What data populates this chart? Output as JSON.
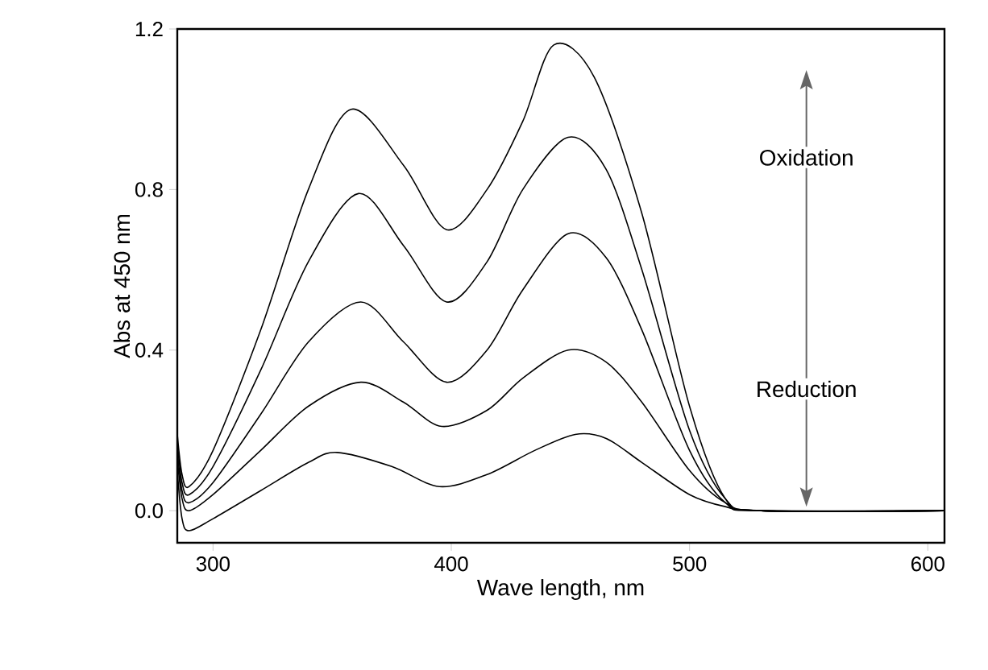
{
  "chart_data": {
    "type": "line",
    "xlabel": "Wave length, nm",
    "ylabel": "Abs at 450 nm",
    "annotations": [
      "Oxidation",
      "Reduction"
    ],
    "xlim": [
      285,
      607
    ],
    "xticks": [
      300,
      400,
      500,
      600
    ],
    "ylim": [
      -0.08,
      1.2
    ],
    "yticks": [
      {
        "value": 0,
        "label": "0.0"
      },
      0.4,
      0.8,
      1.2
    ],
    "grid": false,
    "marker": "none",
    "line_style": "solid",
    "series": [
      {
        "color": "#000000",
        "x": [
          285,
          287,
          290,
          300,
          320,
          340,
          358,
          380,
          398,
          415,
          430,
          443,
          460,
          480,
          500,
          515,
          530,
          607
        ],
        "values": [
          0.19,
          0.09,
          0.06,
          0.15,
          0.45,
          0.8,
          1.0,
          0.86,
          0.7,
          0.8,
          0.97,
          1.16,
          1.08,
          0.74,
          0.26,
          0.03,
          0.0,
          0.0
        ]
      },
      {
        "color": "#000000",
        "x": [
          285,
          287,
          290,
          300,
          320,
          340,
          361,
          380,
          398,
          415,
          430,
          449,
          465,
          480,
          500,
          515,
          530,
          607
        ],
        "values": [
          0.17,
          0.07,
          0.04,
          0.11,
          0.35,
          0.62,
          0.79,
          0.66,
          0.52,
          0.62,
          0.8,
          0.93,
          0.85,
          0.6,
          0.2,
          0.03,
          0.0,
          0.0
        ]
      },
      {
        "color": "#000000",
        "x": [
          285,
          287,
          290,
          300,
          320,
          340,
          362,
          380,
          398,
          415,
          430,
          449,
          465,
          480,
          500,
          515,
          530,
          607
        ],
        "values": [
          0.15,
          0.05,
          0.02,
          0.07,
          0.24,
          0.42,
          0.52,
          0.42,
          0.32,
          0.4,
          0.55,
          0.69,
          0.63,
          0.45,
          0.15,
          0.02,
          0.0,
          0.0
        ]
      },
      {
        "color": "#000000",
        "x": [
          285,
          287,
          290,
          300,
          320,
          340,
          362,
          380,
          396,
          415,
          430,
          449,
          465,
          480,
          500,
          515,
          530,
          607
        ],
        "values": [
          0.13,
          0.03,
          0.0,
          0.04,
          0.15,
          0.26,
          0.32,
          0.27,
          0.21,
          0.25,
          0.33,
          0.4,
          0.37,
          0.27,
          0.1,
          0.02,
          0.0,
          0.0
        ]
      },
      {
        "color": "#000000",
        "x": [
          285,
          287,
          290,
          300,
          320,
          340,
          352,
          375,
          395,
          415,
          435,
          452,
          465,
          480,
          500,
          515,
          530,
          607
        ],
        "values": [
          0.1,
          -0.02,
          -0.05,
          -0.02,
          0.05,
          0.12,
          0.145,
          0.11,
          0.06,
          0.09,
          0.15,
          0.19,
          0.18,
          0.12,
          0.04,
          0.01,
          0.0,
          0.0
        ]
      }
    ]
  }
}
